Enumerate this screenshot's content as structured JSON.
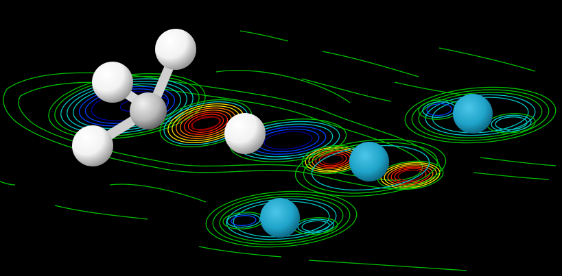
{
  "scene": {
    "background_color": "#000000",
    "molecule": {
      "carbon_color": "#c8c8c8",
      "hydrogen_color": "#ffffff",
      "hydrogen_count": 4
    },
    "surface_atoms": {
      "color": "#1fa3c9",
      "count": 3
    },
    "contour_palette": [
      "#00c000",
      "#00c8c8",
      "#0040ff",
      "#0000a0",
      "#ffe000",
      "#ff8000",
      "#ff2000",
      "#a00000"
    ]
  }
}
